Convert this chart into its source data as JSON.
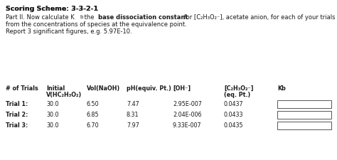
{
  "title": "Scoring Scheme: 3-3-2-1",
  "desc_line1_normal1": "Part II. Now calculate K",
  "desc_line1_sub": "b",
  "desc_line1_normal2": " the ",
  "desc_line1_bold": "base dissociation constant",
  "desc_line1_normal3": " for [C₂H₃O₂⁻], acetate anion, for each of your trials",
  "desc_line2": "from the concentrations of species at the equivalence point.",
  "desc_line3": "Report 3 significant figures, e.g. 5.97E-10.",
  "header_row1": [
    "# of Trials",
    "Initial",
    "Vol(NaOH)",
    "pH(equiv. Pt.)",
    "[OH⁻]",
    "[C₂H₃O₂⁻]",
    "Kb"
  ],
  "header_row2": [
    "",
    "V(HC₂H₃O₂)",
    "",
    "",
    "",
    "(eq. Pt.)",
    ""
  ],
  "rows": [
    [
      "Trial 1:",
      "30.0",
      "6.50",
      "7.47",
      "2.95E-007",
      "0.0437"
    ],
    [
      "Trial 2:",
      "30.0",
      "6.85",
      "8.31",
      "2.04E-006",
      "0.0433"
    ],
    [
      "Trial 3:",
      "30.0",
      "6.70",
      "7.97",
      "9.33E-007",
      "0.0435"
    ]
  ],
  "bg_color": "#ffffff",
  "text_color": "#1a1a1a",
  "fs_title": 6.8,
  "fs_body": 6.0,
  "fs_table": 5.8
}
